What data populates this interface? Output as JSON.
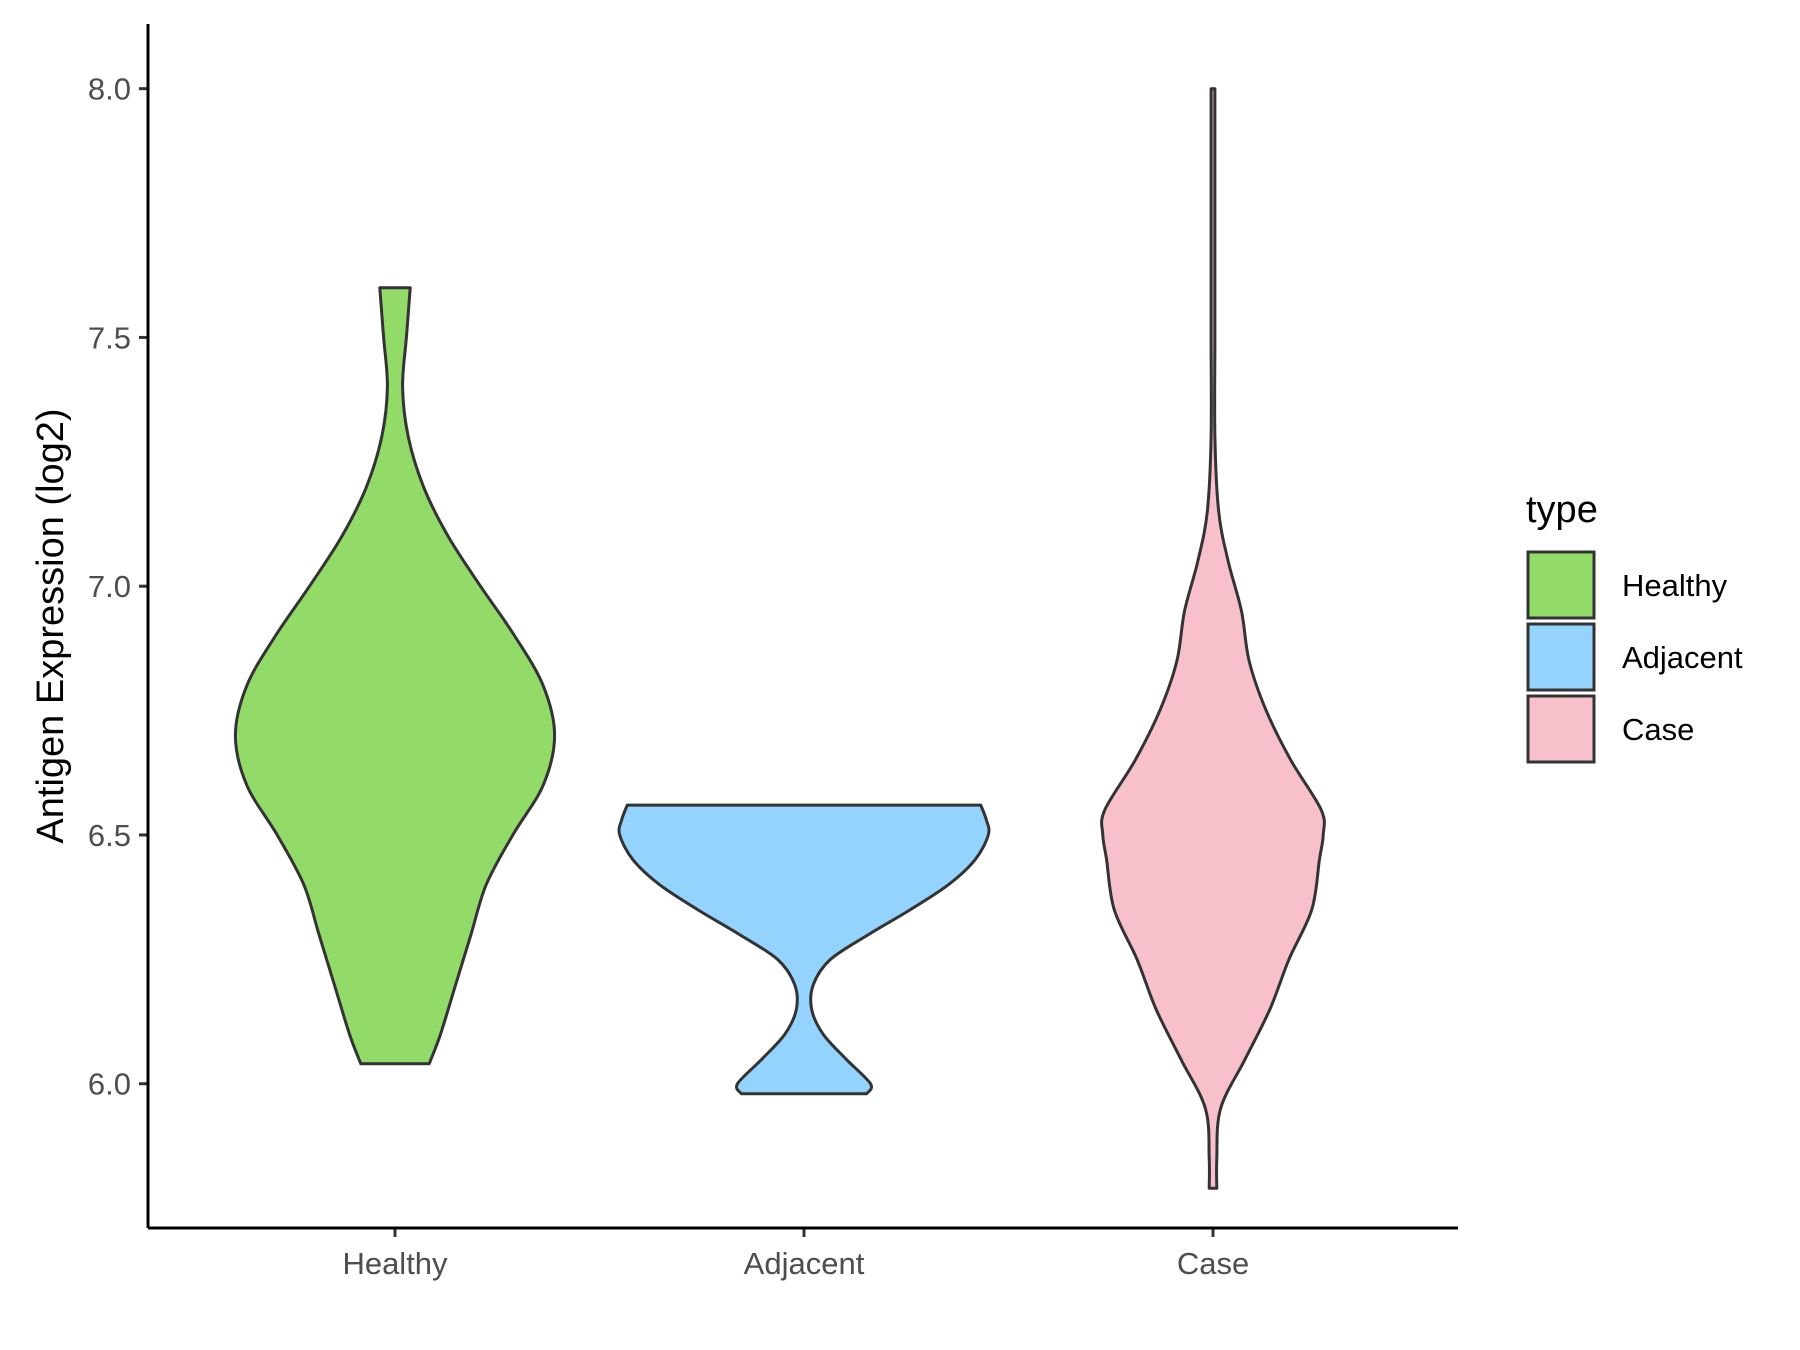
{
  "chart_data": {
    "type": "violin",
    "ylabel": "Antigen Expression (log2)",
    "xlabel": "",
    "ylim": [
      5.71,
      8.13
    ],
    "y_ticks": [
      6.0,
      6.5,
      7.0,
      7.5,
      8.0
    ],
    "y_tick_labels": [
      "6.0",
      "6.5",
      "7.0",
      "7.5",
      "8.0"
    ],
    "categories": [
      "Healthy",
      "Adjacent",
      "Case"
    ],
    "legend": {
      "title": "type",
      "placement": "right",
      "entries": [
        "Healthy",
        "Adjacent",
        "Case"
      ]
    },
    "series": [
      {
        "name": "Healthy",
        "color": "#93db69",
        "y_min": 6.04,
        "y_max": 7.6,
        "density": [
          [
            6.04,
            0.18
          ],
          [
            6.1,
            0.24
          ],
          [
            6.2,
            0.32
          ],
          [
            6.3,
            0.4
          ],
          [
            6.4,
            0.48
          ],
          [
            6.5,
            0.62
          ],
          [
            6.6,
            0.78
          ],
          [
            6.7,
            0.84
          ],
          [
            6.8,
            0.78
          ],
          [
            6.9,
            0.63
          ],
          [
            7.0,
            0.45
          ],
          [
            7.1,
            0.28
          ],
          [
            7.2,
            0.15
          ],
          [
            7.3,
            0.07
          ],
          [
            7.4,
            0.04
          ],
          [
            7.5,
            0.06
          ],
          [
            7.6,
            0.08
          ]
        ]
      },
      {
        "name": "Adjacent",
        "color": "#93d3fd",
        "y_min": 5.98,
        "y_max": 6.56,
        "density": [
          [
            5.98,
            0.33
          ],
          [
            6.0,
            0.35
          ],
          [
            6.05,
            0.22
          ],
          [
            6.1,
            0.1
          ],
          [
            6.15,
            0.04
          ],
          [
            6.2,
            0.05
          ],
          [
            6.25,
            0.14
          ],
          [
            6.3,
            0.34
          ],
          [
            6.35,
            0.56
          ],
          [
            6.4,
            0.76
          ],
          [
            6.45,
            0.9
          ],
          [
            6.5,
            0.97
          ],
          [
            6.53,
            0.96
          ],
          [
            6.56,
            0.93
          ]
        ]
      },
      {
        "name": "Case",
        "color": "#f7c0cb",
        "y_min": 5.79,
        "y_max": 8.0,
        "density": [
          [
            5.79,
            0.02
          ],
          [
            5.85,
            0.02
          ],
          [
            5.95,
            0.04
          ],
          [
            6.05,
            0.17
          ],
          [
            6.15,
            0.3
          ],
          [
            6.25,
            0.4
          ],
          [
            6.35,
            0.52
          ],
          [
            6.45,
            0.56
          ],
          [
            6.5,
            0.58
          ],
          [
            6.55,
            0.57
          ],
          [
            6.65,
            0.41
          ],
          [
            6.75,
            0.28
          ],
          [
            6.85,
            0.19
          ],
          [
            6.95,
            0.15
          ],
          [
            7.05,
            0.08
          ],
          [
            7.15,
            0.03
          ],
          [
            7.3,
            0.01
          ],
          [
            7.5,
            0.01
          ],
          [
            7.7,
            0.01
          ],
          [
            8.0,
            0.01
          ]
        ]
      }
    ]
  }
}
